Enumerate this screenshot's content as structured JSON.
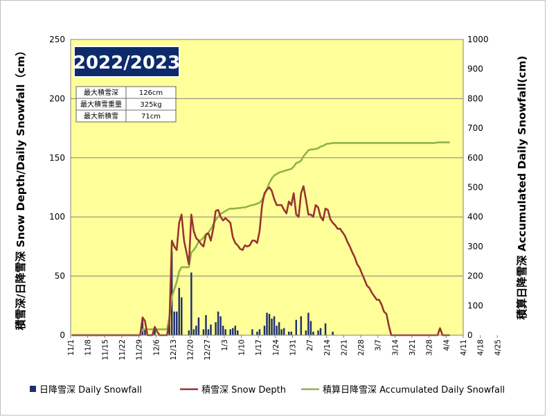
{
  "chart_data": {
    "type": "bar+line",
    "season_title": "2022/2023",
    "ylabel_left": "積雪深/日降雪深 Snow Depth/Daily Snowfall（cm）",
    "ylabel_right": "積算日降雪深 Accumulated Daily Snowfall(cm)",
    "ylim_left": [
      0,
      250
    ],
    "ylim_right": [
      0,
      1000
    ],
    "yticks_left": [
      "0",
      "50",
      "100",
      "150",
      "200",
      "250"
    ],
    "yticks_right": [
      "0",
      "100",
      "200",
      "300",
      "400",
      "500",
      "600",
      "700",
      "800",
      "900",
      "1000"
    ],
    "xticks": [
      "11/1",
      "11/8",
      "11/15",
      "11/22",
      "11/29",
      "12/6",
      "12/13",
      "12/20",
      "12/27",
      "1/3",
      "1/10",
      "1/17",
      "1/24",
      "1/31",
      "2/7",
      "2/14",
      "2/21",
      "2/28",
      "3/7",
      "3/14",
      "3/21",
      "3/28",
      "4/4",
      "4/11",
      "4/18",
      "4/25"
    ],
    "grid": true,
    "legend_position": "bottom",
    "stats": [
      {
        "label": "最大積雪深",
        "value": "126cm"
      },
      {
        "label": "最大積雪重量",
        "value": "325kg"
      },
      {
        "label": "最大新積雪",
        "value": "71cm"
      }
    ],
    "colors": {
      "plot_bg": "#ffff99",
      "bars": "#1f2f6e",
      "snow_depth": "#993333",
      "accumulated": "#8fb24a",
      "title_box": "#0d2a6b"
    },
    "series": [
      {
        "name": "日降雪深 Daily Snowfall",
        "kind": "bar",
        "axis": "left",
        "points": [
          [
            29,
            15
          ],
          [
            30,
            5
          ],
          [
            34,
            6
          ],
          [
            40,
            10
          ],
          [
            41,
            71
          ],
          [
            42,
            20
          ],
          [
            43,
            20
          ],
          [
            44,
            40
          ],
          [
            45,
            32
          ],
          [
            48,
            4
          ],
          [
            49,
            53
          ],
          [
            50,
            5
          ],
          [
            51,
            8
          ],
          [
            52,
            15
          ],
          [
            54,
            5
          ],
          [
            55,
            17
          ],
          [
            56,
            5
          ],
          [
            57,
            9
          ],
          [
            59,
            11
          ],
          [
            60,
            20
          ],
          [
            61,
            16
          ],
          [
            62,
            8
          ],
          [
            63,
            5
          ],
          [
            65,
            5
          ],
          [
            66,
            6
          ],
          [
            67,
            8
          ],
          [
            68,
            4
          ],
          [
            74,
            5
          ],
          [
            76,
            3
          ],
          [
            77,
            5
          ],
          [
            79,
            8
          ],
          [
            80,
            19
          ],
          [
            81,
            18
          ],
          [
            82,
            14
          ],
          [
            83,
            16
          ],
          [
            84,
            8
          ],
          [
            85,
            11
          ],
          [
            86,
            5
          ],
          [
            87,
            6
          ],
          [
            89,
            3
          ],
          [
            90,
            3
          ],
          [
            92,
            13
          ],
          [
            94,
            16
          ],
          [
            96,
            4
          ],
          [
            97,
            19
          ],
          [
            98,
            12
          ],
          [
            99,
            3
          ],
          [
            101,
            4
          ],
          [
            102,
            6
          ],
          [
            104,
            10
          ],
          [
            107,
            3
          ]
        ]
      },
      {
        "name": "積雪深 Snow Depth",
        "kind": "line",
        "axis": "left",
        "points": [
          [
            0,
            0
          ],
          [
            28,
            0
          ],
          [
            29,
            15
          ],
          [
            30,
            12
          ],
          [
            31,
            0
          ],
          [
            33,
            0
          ],
          [
            34,
            7
          ],
          [
            35,
            3
          ],
          [
            36,
            0
          ],
          [
            39,
            0
          ],
          [
            40,
            10
          ],
          [
            41,
            80
          ],
          [
            42,
            75
          ],
          [
            43,
            72
          ],
          [
            44,
            95
          ],
          [
            45,
            102
          ],
          [
            46,
            80
          ],
          [
            47,
            70
          ],
          [
            48,
            60
          ],
          [
            49,
            102
          ],
          [
            50,
            88
          ],
          [
            51,
            82
          ],
          [
            52,
            80
          ],
          [
            53,
            77
          ],
          [
            54,
            75
          ],
          [
            55,
            85
          ],
          [
            56,
            86
          ],
          [
            57,
            80
          ],
          [
            58,
            90
          ],
          [
            59,
            105
          ],
          [
            60,
            106
          ],
          [
            61,
            100
          ],
          [
            62,
            97
          ],
          [
            63,
            99
          ],
          [
            64,
            97
          ],
          [
            65,
            95
          ],
          [
            66,
            83
          ],
          [
            67,
            78
          ],
          [
            68,
            76
          ],
          [
            69,
            73
          ],
          [
            70,
            72
          ],
          [
            71,
            76
          ],
          [
            72,
            75
          ],
          [
            73,
            76
          ],
          [
            74,
            80
          ],
          [
            75,
            80
          ],
          [
            76,
            78
          ],
          [
            77,
            88
          ],
          [
            78,
            110
          ],
          [
            79,
            120
          ],
          [
            80,
            123
          ],
          [
            81,
            125
          ],
          [
            82,
            122
          ],
          [
            83,
            115
          ],
          [
            84,
            110
          ],
          [
            85,
            110
          ],
          [
            86,
            110
          ],
          [
            87,
            106
          ],
          [
            88,
            103
          ],
          [
            89,
            113
          ],
          [
            90,
            110
          ],
          [
            91,
            120
          ],
          [
            92,
            102
          ],
          [
            93,
            100
          ],
          [
            94,
            120
          ],
          [
            95,
            126
          ],
          [
            96,
            115
          ],
          [
            97,
            102
          ],
          [
            98,
            102
          ],
          [
            99,
            100
          ],
          [
            100,
            110
          ],
          [
            101,
            108
          ],
          [
            102,
            100
          ],
          [
            103,
            97
          ],
          [
            104,
            107
          ],
          [
            105,
            106
          ],
          [
            106,
            98
          ],
          [
            107,
            95
          ],
          [
            108,
            93
          ],
          [
            109,
            90
          ],
          [
            110,
            90
          ],
          [
            111,
            87
          ],
          [
            112,
            84
          ],
          [
            113,
            79
          ],
          [
            114,
            75
          ],
          [
            115,
            70
          ],
          [
            116,
            66
          ],
          [
            117,
            60
          ],
          [
            118,
            57
          ],
          [
            119,
            52
          ],
          [
            120,
            47
          ],
          [
            121,
            42
          ],
          [
            122,
            40
          ],
          [
            123,
            36
          ],
          [
            124,
            33
          ],
          [
            125,
            30
          ],
          [
            126,
            30
          ],
          [
            127,
            26
          ],
          [
            128,
            20
          ],
          [
            129,
            18
          ],
          [
            130,
            8
          ],
          [
            131,
            0
          ],
          [
            150,
            0
          ],
          [
            151,
            6
          ],
          [
            152,
            0
          ],
          [
            155,
            0
          ]
        ]
      },
      {
        "name": "積算日降雪深 Accumulated Daily Snowfall",
        "kind": "line",
        "axis": "right",
        "points": [
          [
            0,
            0
          ],
          [
            28,
            0
          ],
          [
            29,
            20
          ],
          [
            39,
            20
          ],
          [
            40,
            60
          ],
          [
            41,
            130
          ],
          [
            42,
            155
          ],
          [
            43,
            180
          ],
          [
            44,
            215
          ],
          [
            45,
            230
          ],
          [
            48,
            230
          ],
          [
            49,
            280
          ],
          [
            50,
            288
          ],
          [
            51,
            300
          ],
          [
            52,
            318
          ],
          [
            53,
            322
          ],
          [
            54,
            330
          ],
          [
            55,
            342
          ],
          [
            56,
            348
          ],
          [
            57,
            358
          ],
          [
            58,
            375
          ],
          [
            59,
            390
          ],
          [
            60,
            400
          ],
          [
            61,
            410
          ],
          [
            62,
            415
          ],
          [
            63,
            420
          ],
          [
            64,
            425
          ],
          [
            65,
            428
          ],
          [
            66,
            428
          ],
          [
            67,
            428
          ],
          [
            68,
            430
          ],
          [
            69,
            430
          ],
          [
            70,
            432
          ],
          [
            71,
            432
          ],
          [
            72,
            435
          ],
          [
            73,
            438
          ],
          [
            74,
            440
          ],
          [
            75,
            442
          ],
          [
            76,
            445
          ],
          [
            77,
            448
          ],
          [
            78,
            458
          ],
          [
            79,
            475
          ],
          [
            80,
            495
          ],
          [
            81,
            515
          ],
          [
            82,
            530
          ],
          [
            83,
            540
          ],
          [
            84,
            545
          ],
          [
            85,
            550
          ],
          [
            86,
            553
          ],
          [
            87,
            555
          ],
          [
            88,
            558
          ],
          [
            89,
            560
          ],
          [
            90,
            562
          ],
          [
            91,
            570
          ],
          [
            92,
            582
          ],
          [
            93,
            585
          ],
          [
            94,
            590
          ],
          [
            95,
            605
          ],
          [
            96,
            615
          ],
          [
            97,
            625
          ],
          [
            98,
            628
          ],
          [
            99,
            628
          ],
          [
            100,
            630
          ],
          [
            101,
            632
          ],
          [
            102,
            638
          ],
          [
            103,
            640
          ],
          [
            104,
            645
          ],
          [
            105,
            648
          ],
          [
            106,
            648
          ],
          [
            107,
            650
          ],
          [
            108,
            650
          ],
          [
            120,
            650
          ],
          [
            130,
            650
          ],
          [
            140,
            650
          ],
          [
            149,
            650
          ],
          [
            150,
            652
          ],
          [
            155,
            652
          ]
        ]
      }
    ]
  }
}
